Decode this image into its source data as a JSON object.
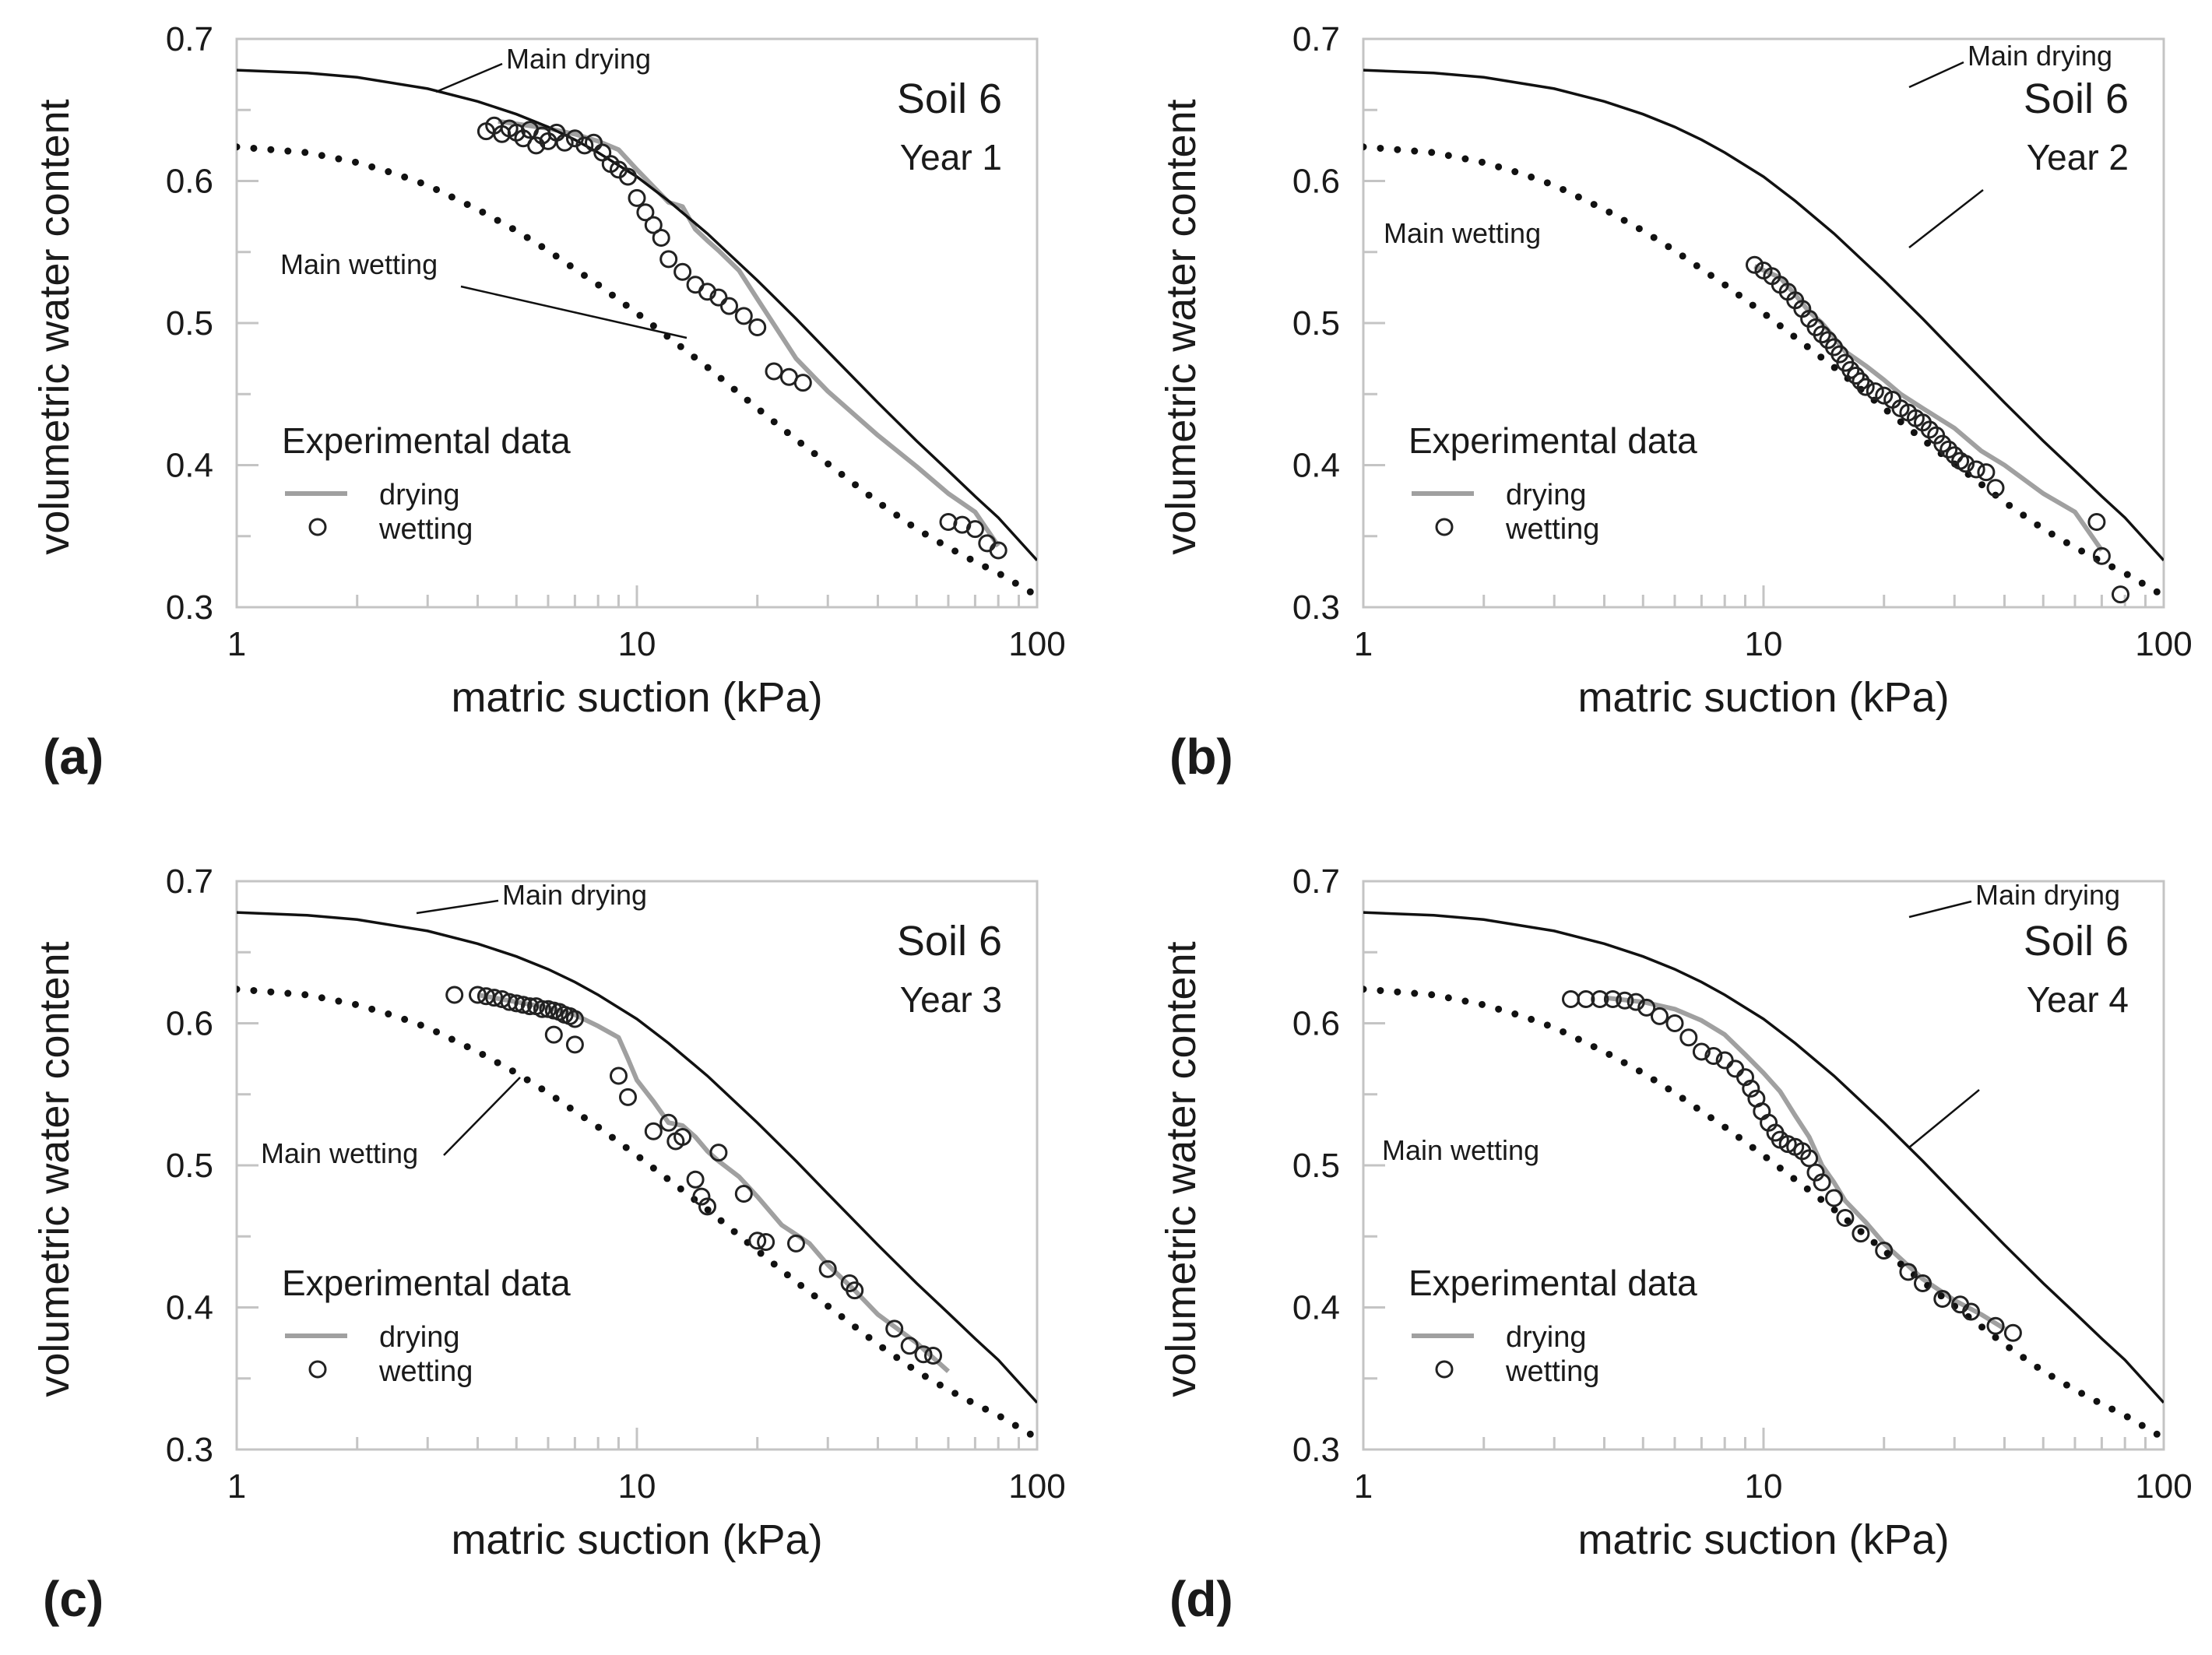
{
  "colors": {
    "model_line": "#111111",
    "drying_data": "#a0a0a0",
    "wetting_marker": "#222222",
    "axis": "#c4c4c4"
  },
  "chart_data": [
    {
      "panel": "(a)",
      "type": "line",
      "title": "Soil 6",
      "subtitle": "Year 1",
      "xlabel": "matric suction (kPa)",
      "ylabel": "volumetric water content",
      "xscale": "log",
      "xlim": [
        1,
        100
      ],
      "ylim": [
        0.3,
        0.7
      ],
      "xticks": [
        "1",
        "10",
        "100"
      ],
      "yticks": [
        "0.3",
        "0.4",
        "0.5",
        "0.6",
        "0.7"
      ],
      "legend": {
        "title": "Experimental data",
        "items": [
          "drying",
          "wetting"
        ],
        "position": "bottom-left"
      },
      "annotations": {
        "drying": "Main drying",
        "wetting": "Main wetting"
      },
      "series": [
        {
          "name": "Main drying",
          "style": "solid",
          "x": [
            1,
            1.5,
            2,
            3,
            4,
            5,
            6,
            7,
            8,
            10,
            12,
            15,
            20,
            25,
            30,
            40,
            50,
            60,
            70,
            80,
            100
          ],
          "y": [
            0.678,
            0.676,
            0.673,
            0.665,
            0.656,
            0.647,
            0.638,
            0.629,
            0.62,
            0.603,
            0.586,
            0.563,
            0.53,
            0.503,
            0.48,
            0.444,
            0.417,
            0.396,
            0.378,
            0.363,
            0.333
          ]
        },
        {
          "name": "Main wetting",
          "style": "dotted",
          "x": [
            1,
            1.5,
            2,
            2.5,
            3,
            4,
            5,
            6,
            7,
            8,
            10,
            12,
            15,
            20,
            25,
            30,
            40,
            50,
            60,
            70,
            80,
            100
          ],
          "y": [
            0.624,
            0.62,
            0.613,
            0.605,
            0.597,
            0.58,
            0.565,
            0.551,
            0.538,
            0.527,
            0.507,
            0.49,
            0.469,
            0.44,
            0.418,
            0.401,
            0.374,
            0.355,
            0.342,
            0.332,
            0.324,
            0.308
          ]
        },
        {
          "name": "drying",
          "x": [
            4.5,
            6,
            7,
            8,
            9,
            10,
            11,
            12,
            13,
            14,
            15,
            16,
            18,
            20,
            25,
            30,
            40,
            50,
            60,
            70,
            80
          ],
          "y": [
            0.642,
            0.637,
            0.633,
            0.628,
            0.622,
            0.608,
            0.596,
            0.585,
            0.582,
            0.566,
            0.558,
            0.551,
            0.537,
            0.517,
            0.475,
            0.452,
            0.421,
            0.399,
            0.38,
            0.367,
            0.343
          ]
        },
        {
          "name": "wetting",
          "x": [
            4.2,
            4.4,
            4.6,
            4.8,
            5.0,
            5.2,
            5.4,
            5.6,
            5.8,
            6.0,
            6.3,
            6.6,
            7.0,
            7.4,
            7.8,
            8.2,
            8.6,
            9.0,
            9.5,
            10.0,
            10.5,
            11.0,
            11.5,
            12.0,
            13.0,
            14.0,
            15.0,
            16.0,
            17.0,
            18.5,
            20.0,
            22.0,
            24.0,
            26.0,
            60,
            65,
            70,
            75,
            80
          ],
          "y": [
            0.635,
            0.639,
            0.633,
            0.637,
            0.634,
            0.63,
            0.636,
            0.625,
            0.632,
            0.628,
            0.634,
            0.627,
            0.63,
            0.625,
            0.627,
            0.62,
            0.612,
            0.608,
            0.603,
            0.588,
            0.578,
            0.569,
            0.56,
            0.545,
            0.536,
            0.527,
            0.522,
            0.518,
            0.512,
            0.505,
            0.497,
            0.466,
            0.462,
            0.458,
            0.36,
            0.358,
            0.355,
            0.345,
            0.34
          ]
        }
      ]
    },
    {
      "panel": "(b)",
      "type": "line",
      "title": "Soil 6",
      "subtitle": "Year 2",
      "xlabel": "matric suction (kPa)",
      "ylabel": "volumetric water content",
      "xscale": "log",
      "xlim": [
        1,
        100
      ],
      "ylim": [
        0.3,
        0.7
      ],
      "xticks": [
        "1",
        "10",
        "100"
      ],
      "yticks": [
        "0.3",
        "0.4",
        "0.5",
        "0.6",
        "0.7"
      ],
      "legend": {
        "title": "Experimental data",
        "items": [
          "drying",
          "wetting"
        ],
        "position": "bottom-left"
      },
      "annotations": {
        "drying": "Main drying",
        "wetting": "Main wetting"
      },
      "series": [
        {
          "name": "Main drying",
          "style": "solid",
          "x": [
            1,
            1.5,
            2,
            3,
            4,
            5,
            6,
            7,
            8,
            10,
            12,
            15,
            20,
            25,
            30,
            40,
            50,
            60,
            70,
            80,
            100
          ],
          "y": [
            0.678,
            0.676,
            0.673,
            0.665,
            0.656,
            0.647,
            0.638,
            0.629,
            0.62,
            0.603,
            0.586,
            0.563,
            0.53,
            0.503,
            0.48,
            0.444,
            0.417,
            0.396,
            0.378,
            0.363,
            0.333
          ]
        },
        {
          "name": "Main wetting",
          "style": "dotted",
          "x": [
            1,
            1.5,
            2,
            2.5,
            3,
            4,
            5,
            6,
            7,
            8,
            10,
            12,
            15,
            20,
            25,
            30,
            40,
            50,
            60,
            70,
            80,
            100
          ],
          "y": [
            0.624,
            0.62,
            0.613,
            0.605,
            0.597,
            0.58,
            0.565,
            0.551,
            0.538,
            0.527,
            0.507,
            0.49,
            0.469,
            0.44,
            0.418,
            0.401,
            0.374,
            0.355,
            0.342,
            0.332,
            0.324,
            0.308
          ]
        },
        {
          "name": "drying",
          "x": [
            9.5,
            11,
            12,
            13,
            14,
            15,
            16,
            18,
            20,
            22,
            25,
            30,
            35,
            40,
            50,
            60,
            70
          ],
          "y": [
            0.54,
            0.532,
            0.52,
            0.508,
            0.5,
            0.49,
            0.48,
            0.47,
            0.46,
            0.45,
            0.44,
            0.426,
            0.41,
            0.4,
            0.38,
            0.367,
            0.34
          ]
        },
        {
          "name": "wetting",
          "x": [
            9.5,
            10.0,
            10.5,
            11.0,
            11.5,
            12.0,
            12.5,
            13.0,
            13.5,
            14.0,
            14.5,
            15.0,
            15.5,
            16.0,
            16.5,
            17.0,
            17.5,
            18.0,
            19.0,
            20.0,
            21.0,
            22.0,
            23.0,
            24.0,
            25.0,
            26.0,
            27.0,
            28.0,
            29.0,
            30.0,
            31.0,
            32.0,
            34.0,
            36.0,
            38.0,
            68,
            70,
            78
          ],
          "y": [
            0.541,
            0.537,
            0.533,
            0.527,
            0.522,
            0.516,
            0.51,
            0.503,
            0.497,
            0.492,
            0.488,
            0.483,
            0.478,
            0.472,
            0.467,
            0.463,
            0.459,
            0.455,
            0.452,
            0.449,
            0.446,
            0.44,
            0.437,
            0.433,
            0.43,
            0.425,
            0.421,
            0.415,
            0.411,
            0.407,
            0.403,
            0.401,
            0.397,
            0.395,
            0.384,
            0.36,
            0.336,
            0.309
          ]
        }
      ]
    },
    {
      "panel": "(c)",
      "type": "line",
      "title": "Soil 6",
      "subtitle": "Year 3",
      "xlabel": "matric suction (kPa)",
      "ylabel": "volumetric water content",
      "xscale": "log",
      "xlim": [
        1,
        100
      ],
      "ylim": [
        0.3,
        0.7
      ],
      "xticks": [
        "1",
        "10",
        "100"
      ],
      "yticks": [
        "0.3",
        "0.4",
        "0.5",
        "0.6",
        "0.7"
      ],
      "legend": {
        "title": "Experimental data",
        "items": [
          "drying",
          "wetting"
        ],
        "position": "bottom-left"
      },
      "annotations": {
        "drying": "Main drying",
        "wetting": "Main wetting"
      },
      "series": [
        {
          "name": "Main drying",
          "style": "solid",
          "x": [
            1,
            1.5,
            2,
            3,
            4,
            5,
            6,
            7,
            8,
            10,
            12,
            15,
            20,
            25,
            30,
            40,
            50,
            60,
            70,
            80,
            100
          ],
          "y": [
            0.678,
            0.676,
            0.673,
            0.665,
            0.656,
            0.647,
            0.638,
            0.629,
            0.62,
            0.603,
            0.586,
            0.563,
            0.53,
            0.503,
            0.48,
            0.444,
            0.417,
            0.396,
            0.378,
            0.363,
            0.333
          ]
        },
        {
          "name": "Main wetting",
          "style": "dotted",
          "x": [
            1,
            1.5,
            2,
            2.5,
            3,
            4,
            5,
            6,
            7,
            8,
            10,
            12,
            15,
            20,
            25,
            30,
            40,
            50,
            60,
            70,
            80,
            100
          ],
          "y": [
            0.624,
            0.62,
            0.613,
            0.605,
            0.597,
            0.58,
            0.565,
            0.551,
            0.538,
            0.527,
            0.507,
            0.49,
            0.469,
            0.44,
            0.418,
            0.401,
            0.374,
            0.355,
            0.342,
            0.332,
            0.324,
            0.308
          ]
        },
        {
          "name": "drying",
          "x": [
            4,
            5,
            6,
            7,
            8,
            9,
            9.5,
            10,
            11,
            12,
            13,
            14,
            15,
            16,
            18,
            20,
            23,
            27,
            30,
            35,
            40,
            50,
            60
          ],
          "y": [
            0.62,
            0.615,
            0.611,
            0.606,
            0.598,
            0.59,
            0.575,
            0.56,
            0.545,
            0.53,
            0.528,
            0.52,
            0.51,
            0.503,
            0.492,
            0.478,
            0.458,
            0.445,
            0.43,
            0.412,
            0.395,
            0.375,
            0.355
          ]
        },
        {
          "name": "wetting",
          "x": [
            3.5,
            4.0,
            4.2,
            4.4,
            4.6,
            4.8,
            5.0,
            5.2,
            5.4,
            5.6,
            5.8,
            6.0,
            6.2,
            6.4,
            6.6,
            6.8,
            7.0,
            6.2,
            7.0,
            9.0,
            9.5,
            11.0,
            12.0,
            12.5,
            13.0,
            14.0,
            14.5,
            15.0,
            16.0,
            18.5,
            20.0,
            21.0,
            25.0,
            30.0,
            34.0,
            35.0,
            44.0,
            48.0,
            52.0,
            55.0
          ],
          "y": [
            0.62,
            0.62,
            0.619,
            0.618,
            0.617,
            0.615,
            0.614,
            0.613,
            0.612,
            0.612,
            0.61,
            0.61,
            0.609,
            0.608,
            0.606,
            0.605,
            0.603,
            0.592,
            0.585,
            0.563,
            0.548,
            0.524,
            0.53,
            0.517,
            0.52,
            0.49,
            0.478,
            0.471,
            0.509,
            0.48,
            0.447,
            0.446,
            0.445,
            0.427,
            0.417,
            0.412,
            0.385,
            0.373,
            0.367,
            0.366
          ]
        }
      ]
    },
    {
      "panel": "(d)",
      "type": "line",
      "title": "Soil 6",
      "subtitle": "Year 4",
      "xlabel": "matric suction (kPa)",
      "ylabel": "volumetric water content",
      "xscale": "log",
      "xlim": [
        1,
        100
      ],
      "ylim": [
        0.3,
        0.7
      ],
      "xticks": [
        "1",
        "10",
        "100"
      ],
      "yticks": [
        "0.3",
        "0.4",
        "0.5",
        "0.6",
        "0.7"
      ],
      "legend": {
        "title": "Experimental data",
        "items": [
          "drying",
          "wetting"
        ],
        "position": "bottom-left"
      },
      "annotations": {
        "drying": "Main drying",
        "wetting": "Main wetting"
      },
      "series": [
        {
          "name": "Main drying",
          "style": "solid",
          "x": [
            1,
            1.5,
            2,
            3,
            4,
            5,
            6,
            7,
            8,
            10,
            12,
            15,
            20,
            25,
            30,
            40,
            50,
            60,
            70,
            80,
            100
          ],
          "y": [
            0.678,
            0.676,
            0.673,
            0.665,
            0.656,
            0.647,
            0.638,
            0.629,
            0.62,
            0.603,
            0.586,
            0.563,
            0.53,
            0.503,
            0.48,
            0.444,
            0.417,
            0.396,
            0.378,
            0.363,
            0.333
          ]
        },
        {
          "name": "Main wetting",
          "style": "dotted",
          "x": [
            1,
            1.5,
            2,
            2.5,
            3,
            4,
            5,
            6,
            7,
            8,
            10,
            12,
            15,
            20,
            25,
            30,
            40,
            50,
            60,
            70,
            80,
            100
          ],
          "y": [
            0.624,
            0.62,
            0.613,
            0.605,
            0.597,
            0.58,
            0.565,
            0.551,
            0.538,
            0.527,
            0.507,
            0.49,
            0.469,
            0.44,
            0.418,
            0.401,
            0.374,
            0.355,
            0.342,
            0.332,
            0.324,
            0.308
          ]
        },
        {
          "name": "drying",
          "x": [
            4,
            5,
            6,
            7,
            8,
            9,
            10,
            11,
            12,
            13,
            14,
            15,
            16,
            18,
            20,
            25,
            30,
            35,
            40
          ],
          "y": [
            0.618,
            0.615,
            0.61,
            0.602,
            0.592,
            0.578,
            0.565,
            0.552,
            0.535,
            0.52,
            0.5,
            0.488,
            0.475,
            0.46,
            0.445,
            0.42,
            0.405,
            0.395,
            0.385
          ]
        },
        {
          "name": "wetting",
          "x": [
            3.3,
            3.6,
            3.9,
            4.2,
            4.5,
            4.8,
            5.1,
            5.5,
            6.0,
            6.5,
            7.0,
            7.5,
            8.0,
            8.5,
            9.0,
            9.3,
            9.6,
            9.9,
            10.3,
            10.7,
            11.0,
            11.5,
            12.0,
            12.5,
            13.0,
            13.5,
            14.0,
            15.0,
            16.0,
            17.5,
            20.0,
            23.0,
            25.0,
            28.0,
            31.0,
            33.0,
            38.0,
            42.0
          ],
          "y": [
            0.617,
            0.617,
            0.617,
            0.617,
            0.616,
            0.615,
            0.611,
            0.605,
            0.6,
            0.59,
            0.58,
            0.577,
            0.574,
            0.568,
            0.562,
            0.554,
            0.547,
            0.538,
            0.53,
            0.523,
            0.518,
            0.515,
            0.513,
            0.51,
            0.505,
            0.495,
            0.488,
            0.477,
            0.463,
            0.452,
            0.44,
            0.425,
            0.417,
            0.406,
            0.402,
            0.397,
            0.387,
            0.382
          ]
        }
      ]
    }
  ]
}
